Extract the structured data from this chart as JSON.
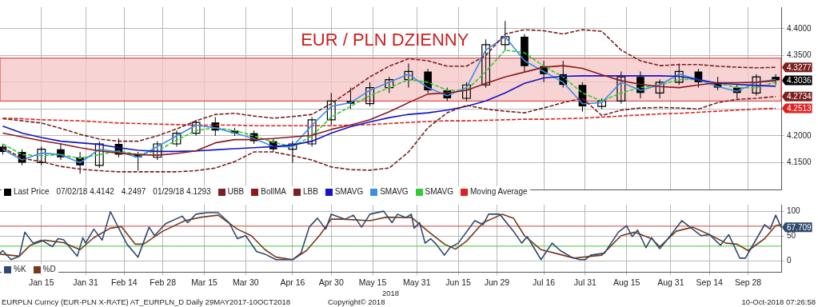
{
  "chart_data": [
    {
      "type": "candlestick",
      "title": "EUR / PLN DZIENNY",
      "x": [
        "2018-01-01",
        "2018-01-08",
        "2018-01-15",
        "2018-01-22",
        "2018-01-29",
        "2018-02-05",
        "2018-02-12",
        "2018-02-19",
        "2018-02-26",
        "2018-03-05",
        "2018-03-12",
        "2018-03-19",
        "2018-03-26",
        "2018-04-02",
        "2018-04-09",
        "2018-04-16",
        "2018-04-23",
        "2018-04-30",
        "2018-05-07",
        "2018-05-14",
        "2018-05-21",
        "2018-05-28",
        "2018-06-04",
        "2018-06-11",
        "2018-06-18",
        "2018-06-25",
        "2018-07-02",
        "2018-07-09",
        "2018-07-16",
        "2018-07-23",
        "2018-07-30",
        "2018-08-06",
        "2018-08-13",
        "2018-08-20",
        "2018-08-27",
        "2018-09-03",
        "2018-09-10",
        "2018-09-17",
        "2018-09-24",
        "2018-10-01",
        "2018-10-08"
      ],
      "series": [
        {
          "name": "Last Price",
          "type": "candlestick",
          "color": "#000000",
          "ohlc": [
            [
              4.18,
              4.185,
              4.165,
              4.17
            ],
            [
              4.17,
              4.175,
              4.145,
              4.15
            ],
            [
              4.15,
              4.18,
              4.145,
              4.175
            ],
            [
              4.175,
              4.185,
              4.155,
              4.16
            ],
            [
              4.16,
              4.17,
              4.1293,
              4.145
            ],
            [
              4.145,
              4.19,
              4.14,
              4.185
            ],
            [
              4.185,
              4.195,
              4.16,
              4.165
            ],
            [
              4.165,
              4.17,
              4.135,
              4.16
            ],
            [
              4.16,
              4.19,
              4.155,
              4.185
            ],
            [
              4.185,
              4.21,
              4.18,
              4.205
            ],
            [
              4.205,
              4.23,
              4.2,
              4.225
            ],
            [
              4.225,
              4.235,
              4.2,
              4.21
            ],
            [
              4.21,
              4.215,
              4.2,
              4.205
            ],
            [
              4.205,
              4.21,
              4.185,
              4.19
            ],
            [
              4.19,
              4.195,
              4.17,
              4.175
            ],
            [
              4.175,
              4.19,
              4.15,
              4.185
            ],
            [
              4.185,
              4.235,
              4.18,
              4.23
            ],
            [
              4.23,
              4.28,
              4.22,
              4.265
            ],
            [
              4.265,
              4.29,
              4.25,
              4.26
            ],
            [
              4.26,
              4.3,
              4.255,
              4.29
            ],
            [
              4.29,
              4.31,
              4.28,
              4.305
            ],
            [
              4.305,
              4.335,
              4.29,
              4.32
            ],
            [
              4.32,
              4.325,
              4.28,
              4.285
            ],
            [
              4.285,
              4.29,
              4.265,
              4.27
            ],
            [
              4.27,
              4.3,
              4.265,
              4.295
            ],
            [
              4.295,
              4.38,
              4.29,
              4.37
            ],
            [
              4.37,
              4.4142,
              4.36,
              4.385
            ],
            [
              4.385,
              4.39,
              4.32,
              4.33
            ],
            [
              4.33,
              4.34,
              4.3,
              4.315
            ],
            [
              4.315,
              4.34,
              4.29,
              4.295
            ],
            [
              4.295,
              4.3,
              4.245,
              4.255
            ],
            [
              4.255,
              4.27,
              4.25,
              4.265
            ],
            [
              4.265,
              4.32,
              4.26,
              4.31
            ],
            [
              4.31,
              4.32,
              4.27,
              4.28
            ],
            [
              4.28,
              4.305,
              4.27,
              4.3
            ],
            [
              4.3,
              4.335,
              4.295,
              4.32
            ],
            [
              4.32,
              4.325,
              4.29,
              4.3
            ],
            [
              4.3,
              4.31,
              4.285,
              4.29
            ],
            [
              4.29,
              4.295,
              4.27,
              4.28
            ],
            [
              4.28,
              4.315,
              4.275,
              4.31
            ],
            [
              4.31,
              4.315,
              4.295,
              4.3036
            ]
          ]
        },
        {
          "name": "UBB",
          "type": "line",
          "color": "#7b1f1f",
          "line_style": "dashed",
          "values": [
            4.232,
            4.228,
            4.224,
            4.214,
            4.203,
            4.194,
            4.19,
            4.19,
            4.2,
            4.213,
            4.228,
            4.24,
            4.242,
            4.237,
            4.233,
            4.236,
            4.24,
            4.26,
            4.285,
            4.31,
            4.33,
            4.344,
            4.34,
            4.33,
            4.33,
            4.35,
            4.39,
            4.398,
            4.396,
            4.39,
            4.398,
            4.395,
            4.36,
            4.34,
            4.331,
            4.333,
            4.333,
            4.33,
            4.328,
            4.327,
            4.3277
          ]
        },
        {
          "name": "BollMA",
          "type": "line",
          "color": "#8b1a1a",
          "values": [
            4.205,
            4.198,
            4.191,
            4.185,
            4.178,
            4.172,
            4.168,
            4.165,
            4.164,
            4.167,
            4.172,
            4.187,
            4.193,
            4.193,
            4.195,
            4.198,
            4.201,
            4.212,
            4.22,
            4.23,
            4.245,
            4.262,
            4.278,
            4.28,
            4.285,
            4.298,
            4.31,
            4.319,
            4.328,
            4.331,
            4.326,
            4.314,
            4.303,
            4.296,
            4.292,
            4.29,
            4.295,
            4.299,
            4.299,
            4.3,
            4.303
          ]
        },
        {
          "name": "LBB",
          "type": "line",
          "color": "#7b1f1f",
          "line_style": "dashed",
          "values": [
            4.178,
            4.158,
            4.152,
            4.143,
            4.138,
            4.135,
            4.133,
            4.133,
            4.133,
            4.133,
            4.135,
            4.14,
            4.152,
            4.17,
            4.17,
            4.163,
            4.155,
            4.142,
            4.137,
            4.136,
            4.14,
            4.17,
            4.215,
            4.243,
            4.257,
            4.25,
            4.246,
            4.243,
            4.252,
            4.262,
            4.27,
            4.238,
            4.248,
            4.252,
            4.253,
            4.252,
            4.25,
            4.262,
            4.268,
            4.27,
            4.2734
          ]
        },
        {
          "name": "SMAVG",
          "type": "line",
          "color": "#1414c8",
          "values": [
            4.218,
            4.205,
            4.197,
            4.19,
            4.187,
            4.184,
            4.178,
            4.173,
            4.171,
            4.171,
            4.172,
            4.174,
            4.176,
            4.178,
            4.18,
            4.183,
            4.19,
            4.205,
            4.217,
            4.226,
            4.234,
            4.24,
            4.243,
            4.248,
            4.255,
            4.265,
            4.28,
            4.298,
            4.308,
            4.311,
            4.312,
            4.312,
            4.312,
            4.312,
            4.312,
            4.311,
            4.305,
            4.298,
            4.296,
            4.294,
            4.2925
          ]
        },
        {
          "name": "SMAVG",
          "type": "line",
          "color": "#3c8ee6",
          "values": [
            4.175,
            4.155,
            4.168,
            4.165,
            4.15,
            4.175,
            4.17,
            4.16,
            4.18,
            4.2,
            4.22,
            4.215,
            4.205,
            4.195,
            4.18,
            4.18,
            4.22,
            4.255,
            4.262,
            4.285,
            4.3,
            4.315,
            4.29,
            4.275,
            4.29,
            4.36,
            4.385,
            4.34,
            4.32,
            4.3,
            4.26,
            4.262,
            4.3,
            4.285,
            4.295,
            4.315,
            4.305,
            4.292,
            4.283,
            4.3,
            4.305
          ]
        },
        {
          "name": "SMAVG",
          "type": "line",
          "color": "#33cc33",
          "line_style": "dashed",
          "values": [
            4.185,
            4.165,
            4.163,
            4.165,
            4.158,
            4.165,
            4.172,
            4.165,
            4.172,
            4.192,
            4.21,
            4.215,
            4.21,
            4.2,
            4.188,
            4.18,
            4.2,
            4.235,
            4.255,
            4.275,
            4.29,
            4.305,
            4.3,
            4.285,
            4.285,
            4.32,
            4.36,
            4.355,
            4.33,
            4.31,
            4.28,
            4.265,
            4.28,
            4.29,
            4.295,
            4.305,
            4.305,
            4.298,
            4.29,
            4.29,
            4.3
          ]
        },
        {
          "name": "Moving Average",
          "type": "line",
          "color": "#e02020",
          "line_style": "dashed",
          "values": [
            4.233,
            4.232,
            4.23,
            4.229,
            4.228,
            4.226,
            4.224,
            4.223,
            4.222,
            4.221,
            4.22,
            4.22,
            4.22,
            4.219,
            4.219,
            4.219,
            4.219,
            4.219,
            4.22,
            4.221,
            4.223,
            4.225,
            4.227,
            4.228,
            4.228,
            4.229,
            4.23,
            4.231,
            4.231,
            4.232,
            4.233,
            4.235,
            4.237,
            4.239,
            4.241,
            4.242,
            4.244,
            4.246,
            4.248,
            4.25,
            4.2513
          ]
        }
      ],
      "xlim": [
        "2017-12-31",
        "2018-10-10"
      ],
      "xticks": [
        {
          "value": "2018-01-15",
          "label": null
        },
        {
          "value": "2018-01-31",
          "label": null
        },
        {
          "value": "2018-02-14",
          "label": null
        },
        {
          "value": "2018-02-28",
          "label": null
        },
        {
          "value": "2018-03-15",
          "label": null
        },
        {
          "value": "2018-03-30",
          "label": null
        },
        {
          "value": "2018-04-16",
          "label": null
        },
        {
          "value": "2018-04-30",
          "label": null
        },
        {
          "value": "2018-05-15",
          "label": null
        },
        {
          "value": "2018-05-31",
          "label": null
        },
        {
          "value": "2018-06-15",
          "label": null
        },
        {
          "value": "2018-06-29",
          "label": null
        },
        {
          "value": "2018-07-16",
          "label": null
        },
        {
          "value": "2018-07-31",
          "label": null
        },
        {
          "value": "2018-08-15",
          "label": null
        },
        {
          "value": "2018-08-31",
          "label": null
        },
        {
          "value": "2018-09-14",
          "label": null
        },
        {
          "value": "2018-09-28",
          "label": null
        }
      ],
      "ylim": [
        4.1,
        4.44
      ],
      "yticks": [
        {
          "value": 4.15,
          "label": "4.1500"
        },
        {
          "value": 4.2,
          "label": "4.2000"
        },
        {
          "value": 4.25,
          "label": null
        },
        {
          "value": 4.3,
          "label": null
        },
        {
          "value": 4.35,
          "label": "4.3500"
        },
        {
          "value": 4.4,
          "label": "4.4000"
        }
      ],
      "tick_labels": "y",
      "bands": [
        {
          "axis": "y",
          "from": 4.265,
          "to": 4.345,
          "color": "#f6c4c4"
        }
      ],
      "annotations": [
        "07/02/18 4.4142",
        "4.2497",
        "01/29/18 4.1293",
        {
          "text": "4.3277",
          "x": "2018-10-08",
          "y": 4.3277
        },
        {
          "text": "4.3036",
          "x": "2018-10-08",
          "y": 4.3036
        },
        {
          "text": "4.2734",
          "x": "2018-10-08",
          "y": 4.2734
        },
        {
          "text": "4.2513",
          "x": "2018-10-08",
          "y": 4.2513
        }
      ],
      "grid": true,
      "legend": "bottom left"
    },
    {
      "type": "line",
      "series": [
        {
          "name": "%K",
          "color": "#2f4a6e",
          "x": [
            "2017-12-31",
            "2018-01-01",
            "2018-01-04",
            "2018-01-07",
            "2018-01-09",
            "2018-01-12",
            "2018-01-15",
            "2018-01-19",
            "2018-01-21",
            "2018-01-23",
            "2018-01-28",
            "2018-01-30",
            "2018-01-31",
            "2018-02-03",
            "2018-02-06",
            "2018-02-09",
            "2018-02-12",
            "2018-02-15",
            "2018-02-19",
            "2018-02-23",
            "2018-02-25",
            "2018-03-01",
            "2018-03-07",
            "2018-03-09",
            "2018-03-12",
            "2018-03-16",
            "2018-03-20",
            "2018-03-24",
            "2018-03-27",
            "2018-03-30",
            "2018-04-03",
            "2018-04-06",
            "2018-04-10",
            "2018-04-16",
            "2018-04-19",
            "2018-04-22",
            "2018-04-25",
            "2018-04-28",
            "2018-04-30",
            "2018-05-05",
            "2018-05-08",
            "2018-05-11",
            "2018-05-14",
            "2018-05-19",
            "2018-05-22",
            "2018-05-24",
            "2018-05-27",
            "2018-05-29",
            "2018-05-30",
            "2018-06-01",
            "2018-06-03",
            "2018-06-05",
            "2018-06-07",
            "2018-06-10",
            "2018-06-12",
            "2018-06-15",
            "2018-06-21",
            "2018-06-24",
            "2018-06-26",
            "2018-06-30",
            "2018-07-05",
            "2018-07-08",
            "2018-07-10",
            "2018-07-15",
            "2018-07-19",
            "2018-07-22",
            "2018-07-26",
            "2018-07-29",
            "2018-07-31",
            "2018-08-02",
            "2018-08-07",
            "2018-08-12",
            "2018-08-15",
            "2018-08-17",
            "2018-08-19",
            "2018-08-22",
            "2018-08-24",
            "2018-08-27",
            "2018-08-30",
            "2018-09-04",
            "2018-09-07",
            "2018-09-11",
            "2018-09-14",
            "2018-09-18",
            "2018-09-21",
            "2018-09-25",
            "2018-09-27",
            "2018-09-29",
            "2018-10-04",
            "2018-10-06",
            "2018-10-08",
            "2018-10-10"
          ],
          "values": [
            16,
            21,
            3,
            10,
            58,
            36,
            42,
            29,
            45,
            43,
            10,
            47,
            36,
            64,
            42,
            99,
            66,
            34,
            8,
            68,
            51,
            75,
            90,
            77,
            94,
            97,
            97,
            77,
            45,
            51,
            19,
            14,
            3,
            3,
            16,
            68,
            86,
            64,
            94,
            84,
            92,
            68,
            94,
            100,
            77,
            94,
            87,
            94,
            66,
            77,
            36,
            45,
            34,
            12,
            27,
            36,
            81,
            73,
            94,
            94,
            60,
            36,
            49,
            3,
            36,
            21,
            8,
            3,
            3,
            12,
            16,
            58,
            71,
            49,
            62,
            27,
            47,
            25,
            45,
            81,
            68,
            51,
            53,
            32,
            53,
            6,
            6,
            25,
            73,
            64,
            92,
            67.709
          ]
        },
        {
          "name": "%D",
          "color": "#7a3a1a",
          "x": [
            "2017-12-31",
            "2018-01-07",
            "2018-01-11",
            "2018-01-16",
            "2018-01-23",
            "2018-01-29",
            "2018-02-03",
            "2018-02-09",
            "2018-02-13",
            "2018-02-18",
            "2018-02-21",
            "2018-02-28",
            "2018-03-08",
            "2018-03-14",
            "2018-03-20",
            "2018-03-27",
            "2018-04-01",
            "2018-04-06",
            "2018-04-10",
            "2018-04-16",
            "2018-04-21",
            "2018-04-26",
            "2018-04-30",
            "2018-05-04",
            "2018-05-14",
            "2018-05-20",
            "2018-05-27",
            "2018-05-29",
            "2018-06-04",
            "2018-06-10",
            "2018-06-14",
            "2018-06-18",
            "2018-06-24",
            "2018-07-01",
            "2018-07-05",
            "2018-07-09",
            "2018-07-15",
            "2018-07-20",
            "2018-07-27",
            "2018-08-06",
            "2018-08-13",
            "2018-08-18",
            "2018-08-24",
            "2018-08-27",
            "2018-09-02",
            "2018-09-08",
            "2018-09-14",
            "2018-09-20",
            "2018-09-24",
            "2018-09-28",
            "2018-10-04",
            "2018-10-08",
            "2018-10-10"
          ],
          "values": [
            14,
            10,
            32,
            42,
            37,
            23,
            47,
            66,
            69,
            34,
            34,
            60,
            81,
            88,
            92,
            64,
            51,
            23,
            8,
            3,
            21,
            53,
            84,
            84,
            81,
            88,
            87,
            88,
            60,
            34,
            24,
            40,
            77,
            94,
            86,
            51,
            23,
            16,
            6,
            12,
            51,
            58,
            45,
            29,
            60,
            68,
            53,
            36,
            34,
            21,
            45,
            71,
            73
          ]
        }
      ],
      "xlim": [
        "2017-12-31",
        "2018-10-10"
      ],
      "xticks": [
        {
          "value": "2018-01-15",
          "label": "Jan 15"
        },
        {
          "value": "2018-01-31",
          "label": "Jan 31"
        },
        {
          "value": "2018-02-14",
          "label": "Feb 14"
        },
        {
          "value": "2018-02-28",
          "label": "Feb 28"
        },
        {
          "value": "2018-03-15",
          "label": "Mar 15"
        },
        {
          "value": "2018-03-30",
          "label": "Mar 30"
        },
        {
          "value": "2018-04-16",
          "label": "Apr 16"
        },
        {
          "value": "2018-04-30",
          "label": "Apr 30"
        },
        {
          "value": "2018-05-15",
          "label": "May 15"
        },
        {
          "value": "2018-05-31",
          "label": "May 31"
        },
        {
          "value": "2018-06-15",
          "label": "Jun 15"
        },
        {
          "value": "2018-06-29",
          "label": "Jun 29"
        },
        {
          "value": "2018-07-16",
          "label": "Jul 16"
        },
        {
          "value": "2018-07-31",
          "label": "Jul 31"
        },
        {
          "value": "2018-08-15",
          "label": "Aug 15"
        },
        {
          "value": "2018-08-31",
          "label": "Aug 31"
        },
        {
          "value": "2018-09-14",
          "label": "Sep 14"
        },
        {
          "value": "2018-09-28",
          "label": "Sep 28"
        }
      ],
      "ylim": [
        -22,
        113
      ],
      "yticks": [
        0,
        50,
        100
      ],
      "ref_lines": [
        {
          "axis": "y",
          "value": 70,
          "color": "#d04040"
        },
        {
          "axis": "y",
          "value": 30,
          "color": "#40c040"
        }
      ],
      "annotations": [
        {
          "text": "67.709",
          "x": "2018-10-10",
          "y": 67.709
        },
        "2018",
        "EURPLN Curncy (EUR-PLN X-RATE) AT_EURPLN_D  Daily 29MAY2017-10OCT2018",
        "Copyright© 2018",
        "10-Oct-2018 07:26:58"
      ],
      "grid": true,
      "legend": "bottom left"
    }
  ]
}
